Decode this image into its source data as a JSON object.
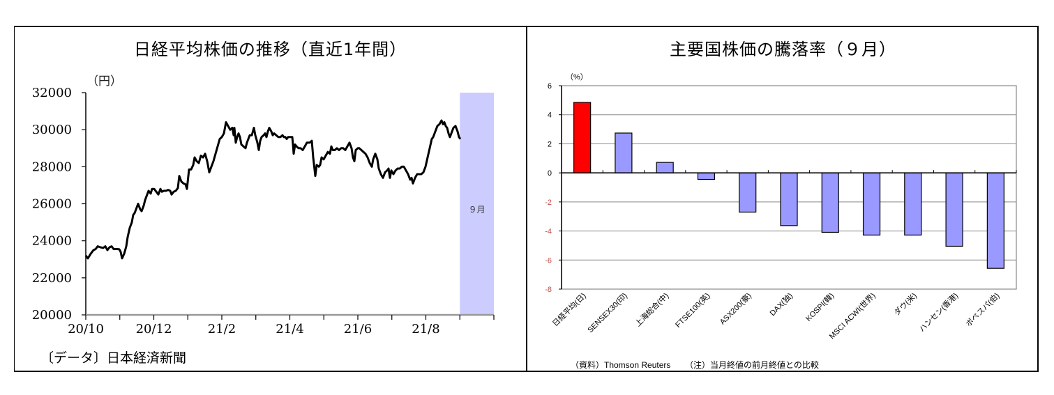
{
  "left_chart": {
    "title": "日経平均株価の推移（直近1年間）",
    "unit_label": "（円）",
    "y_ticks": [
      "32000",
      "30000",
      "28000",
      "26000",
      "24000",
      "22000",
      "20000"
    ],
    "x_labels": [
      "20/10",
      "20/12",
      "21/2",
      "21/4",
      "21/6",
      "21/8"
    ],
    "highlight_label": "９月",
    "source": "〔データ〕日本経済新聞",
    "line_color": "#000000",
    "highlight_color": "#ccccff"
  },
  "right_chart": {
    "title": "主要国株価の騰落率（９月）",
    "unit_label": "（%）",
    "y_ticks": [
      "6",
      "4",
      "2",
      "0",
      "-2",
      "-4",
      "-6",
      "-8"
    ],
    "categories": [
      "日経平均(日)",
      "SENSEX30(印)",
      "上海総合(中)",
      "FTSE100(英)",
      "ASX200(豪)",
      "DAX(独)",
      "KOSPI(韓)",
      "MSCI ACWI(世界)",
      "ダウ(米)",
      "ハンセン(香港)",
      "ボベスパ(伯)"
    ],
    "source_note": "（資料）Thomson Reuters",
    "footnote": "（注）当月終値の前月終値との比較",
    "highlight_bar_color": "#ff0000",
    "bar_color": "#9999ff",
    "negative_tick_color": "#c0504d"
  },
  "chart_data": [
    {
      "type": "line",
      "title": "日経平均株価の推移（直近1年間）",
      "xlabel": "",
      "ylabel": "（円）",
      "ylim": [
        20000,
        32000
      ],
      "x_ticks": [
        "20/10",
        "20/12",
        "21/2",
        "21/4",
        "21/6",
        "21/8"
      ],
      "grid": false,
      "annotations": [
        {
          "type": "shaded_region",
          "from": "21/9",
          "to": "21/10",
          "label": "９月"
        }
      ],
      "x": [
        "20/10/01",
        "20/10/15",
        "20/11/01",
        "20/11/15",
        "20/12/01",
        "20/12/15",
        "21/01/01",
        "21/01/15",
        "21/02/01",
        "21/02/15",
        "21/03/01",
        "21/03/15",
        "21/04/01",
        "21/04/15",
        "21/05/01",
        "21/05/15",
        "21/06/01",
        "21/06/15",
        "21/07/01",
        "21/07/15",
        "21/08/01",
        "21/08/15",
        "21/09/01",
        "21/09/15",
        "21/09/30"
      ],
      "values": [
        23200,
        23600,
        23400,
        25700,
        26600,
        26800,
        27500,
        28600,
        28800,
        30300,
        29200,
        29800,
        29400,
        29700,
        29000,
        28000,
        29000,
        29000,
        28700,
        27800,
        27800,
        27500,
        28400,
        30500,
        29500
      ]
    },
    {
      "type": "bar",
      "title": "主要国株価の騰落率（９月）",
      "xlabel": "",
      "ylabel": "（%）",
      "ylim": [
        -8,
        6
      ],
      "grid": true,
      "categories": [
        "日経平均(日)",
        "SENSEX30(印)",
        "上海総合(中)",
        "FTSE100(英)",
        "ASX200(豪)",
        "DAX(独)",
        "KOSPI(韓)",
        "MSCI ACWI(世界)",
        "ダウ(米)",
        "ハンセン(香港)",
        "ボベスパ(伯)"
      ],
      "values": [
        4.85,
        2.74,
        0.72,
        -0.45,
        -2.7,
        -3.63,
        -4.09,
        -4.28,
        -4.28,
        -5.05,
        -6.57
      ]
    }
  ]
}
